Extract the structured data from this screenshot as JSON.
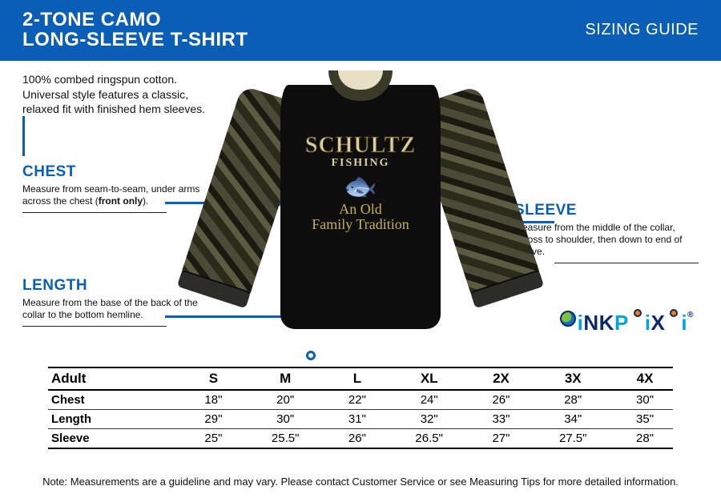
{
  "header": {
    "title_line1": "2-TONE CAMO",
    "title_line2": "LONG-SLEEVE T-SHIRT",
    "guide": "SIZING GUIDE",
    "bg_color": "#0b5eb5",
    "text_color": "#ffffff"
  },
  "description": "100% combed ringspun cotton. Universal style features a classic, relaxed fit with finished hem sleeves.",
  "callouts": {
    "chest": {
      "title": "CHEST",
      "text_pre": "Measure from seam-to-seam, under arms across the chest (",
      "text_bold": "front only",
      "text_post": ")."
    },
    "length": {
      "title": "LENGTH",
      "text": "Measure from the base of the back of the collar to the bottom hemline."
    },
    "sleeve": {
      "title": "SLEEVE",
      "text": "Measure from the middle of the collar, across to shoulder, then down to end of sleeve."
    }
  },
  "shirt_print": {
    "brand": "SCHULTZ",
    "sub1": "FISHING",
    "script1": "An Old",
    "script2": "Family Tradition"
  },
  "logo": {
    "text1": "i",
    "text2": "NK",
    "text3": "P",
    "text4": "i",
    "text5": "X",
    "text6": "i",
    "reg": "®"
  },
  "colors": {
    "brand_blue": "#0b5eb5",
    "line_color": "#0b5eb5",
    "text": "#111111",
    "shirt_body": "#0d0d0d",
    "print_text": "#d9cfa0",
    "script_text": "#c8b24a"
  },
  "table": {
    "header_label": "Adult",
    "sizes": [
      "S",
      "M",
      "L",
      "XL",
      "2X",
      "3X",
      "4X"
    ],
    "rows": [
      {
        "label": "Chest",
        "values": [
          "18\"",
          "20\"",
          "22\"",
          "24\"",
          "26\"",
          "28\"",
          "30\""
        ]
      },
      {
        "label": "Length",
        "values": [
          "29\"",
          "30\"",
          "31\"",
          "32\"",
          "33\"",
          "34\"",
          "35\""
        ]
      },
      {
        "label": "Sleeve",
        "values": [
          "25\"",
          "25.5\"",
          "26\"",
          "26.5\"",
          "27\"",
          "27.5\"",
          "28\""
        ]
      }
    ]
  },
  "note": "Note: Measurements are a guideline and may vary. Please contact Customer Service or see Measuring Tips for more detailed information."
}
